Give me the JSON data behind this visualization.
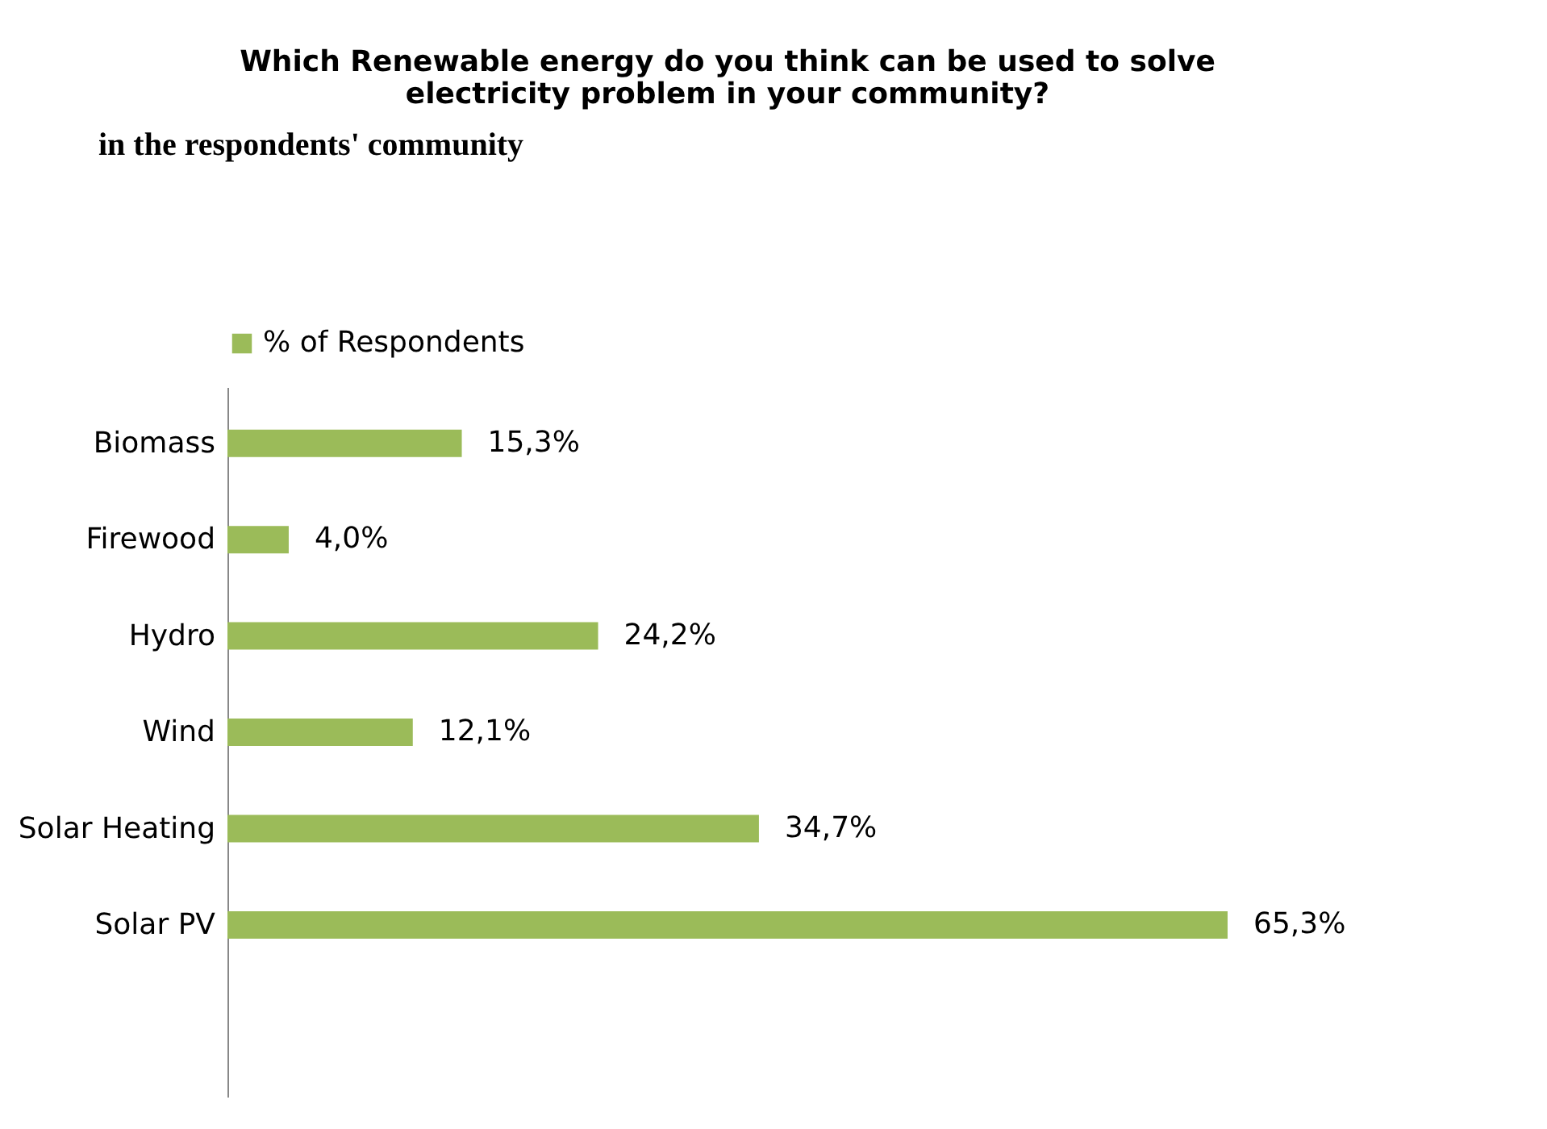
{
  "chart_data": {
    "type": "bar",
    "orientation": "horizontal",
    "title": "Which Renewable energy do you think can be used to solve electricity problem in your community?",
    "annotations": [
      "in the respondents' community"
    ],
    "categories": [
      "Biomass",
      "Firewood",
      "Hydro",
      "Wind",
      "Solar Heating",
      "Solar PV"
    ],
    "series": [
      {
        "name": "% of Respondents",
        "color": "#9bbb59",
        "values": [
          15.3,
          4.0,
          24.2,
          12.1,
          34.7,
          65.3
        ],
        "value_labels": [
          "15,3%",
          "4,0%",
          "24,2%",
          "12,1%",
          "34,7%",
          "65,3%"
        ]
      }
    ],
    "legend": "top"
  }
}
